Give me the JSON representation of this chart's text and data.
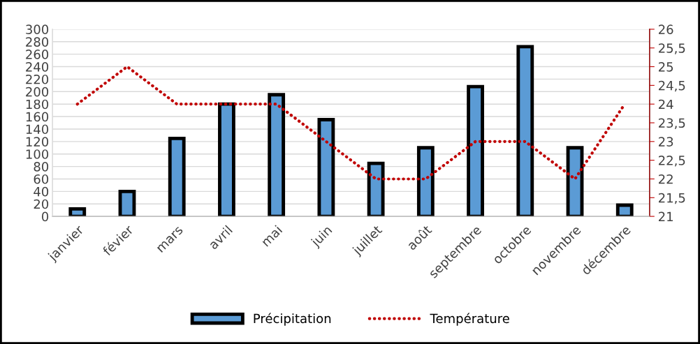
{
  "chart_data": {
    "type": "bar",
    "categories": [
      "janvier",
      "févier",
      "mars",
      "avril",
      "mai",
      "juin",
      "juillet",
      "août",
      "septembre",
      "octobre",
      "novembre",
      "décembre"
    ],
    "series": [
      {
        "name": "Précipitation",
        "color": "#5b9bd5",
        "values": [
          12,
          40,
          125,
          180,
          195,
          155,
          85,
          110,
          208,
          272,
          110,
          18
        ]
      },
      {
        "name": "Température",
        "type": "line",
        "axis": "y2",
        "color": "#c00000",
        "line_style": "dotted",
        "values": [
          24,
          25,
          24,
          24,
          24,
          23,
          22,
          22,
          23,
          23,
          22,
          24
        ]
      }
    ],
    "ylim": [
      0,
      300
    ],
    "yticks": [
      0,
      20,
      40,
      60,
      80,
      100,
      120,
      140,
      160,
      180,
      200,
      220,
      240,
      260,
      280,
      300
    ],
    "y2lim": [
      21,
      26
    ],
    "y2ticks": [
      21,
      {
        "value": 21.5,
        "label": "21,5"
      },
      22,
      {
        "value": 22.5,
        "label": "22,5"
      },
      23,
      {
        "value": 23.5,
        "label": "23,5"
      },
      24,
      {
        "value": 24.5,
        "label": "24,5"
      },
      25,
      {
        "value": 25.5,
        "label": "25,5"
      },
      26
    ],
    "grid": "y",
    "legend": "bottom",
    "marker": "none"
  }
}
